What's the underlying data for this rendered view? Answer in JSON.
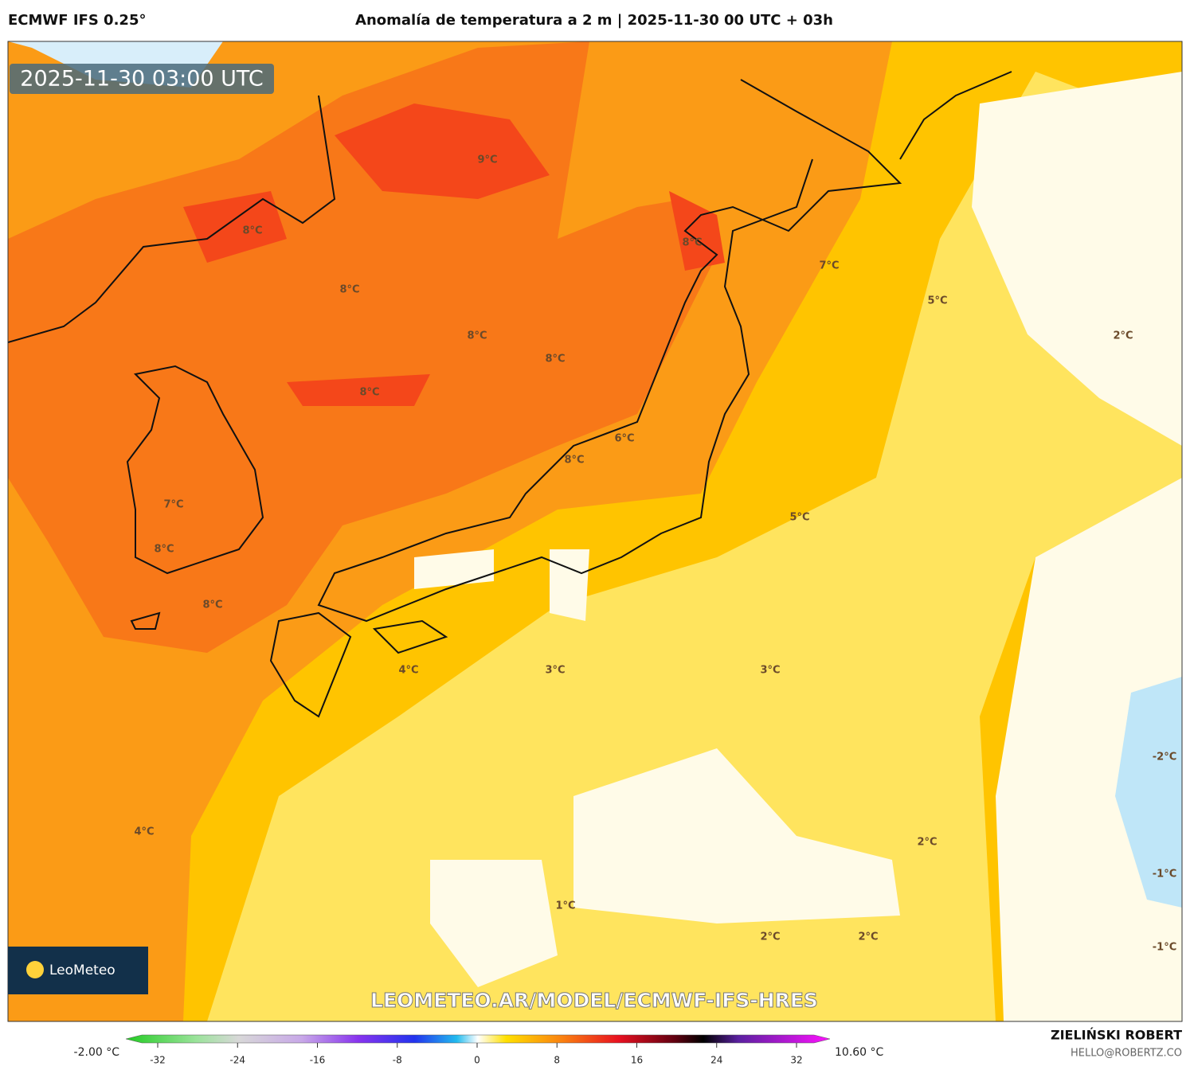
{
  "header": {
    "model": "ECMWF IFS 0.25°",
    "title": "Anomalía de temperatura a 2 m | 2025-11-30 00 UTC + 03h"
  },
  "map": {
    "timestamp": "2025-11-30 03:00 UTC",
    "logo": "LeoMeteo",
    "watermark": "LEOMETEO.AR/MODEL/ECMWF-IFS-HRES",
    "contour_labels": [
      "9°C",
      "8°C",
      "8°C",
      "7°C",
      "8°C",
      "5°C",
      "8°C",
      "2°C",
      "8°C",
      "8°C",
      "6°C",
      "8°C",
      "5°C",
      "7°C",
      "8°C",
      "8°C",
      "4°C",
      "3°C",
      "3°C",
      "-2°C",
      "4°C",
      "2°C",
      "-1°C",
      "1°C",
      "2°C",
      "2°C",
      "-1°C"
    ]
  },
  "colorbar": {
    "min_label": "-2.00 °C",
    "max_label": "10.60 °C",
    "range": [
      -32,
      32
    ],
    "ticks": [
      -32,
      -24,
      -16,
      -8,
      0,
      8,
      16,
      24,
      32
    ]
  },
  "footer": {
    "author": "ZIELIŃSKI ROBERT",
    "email": "HELLO@ROBERTZ.CO"
  }
}
